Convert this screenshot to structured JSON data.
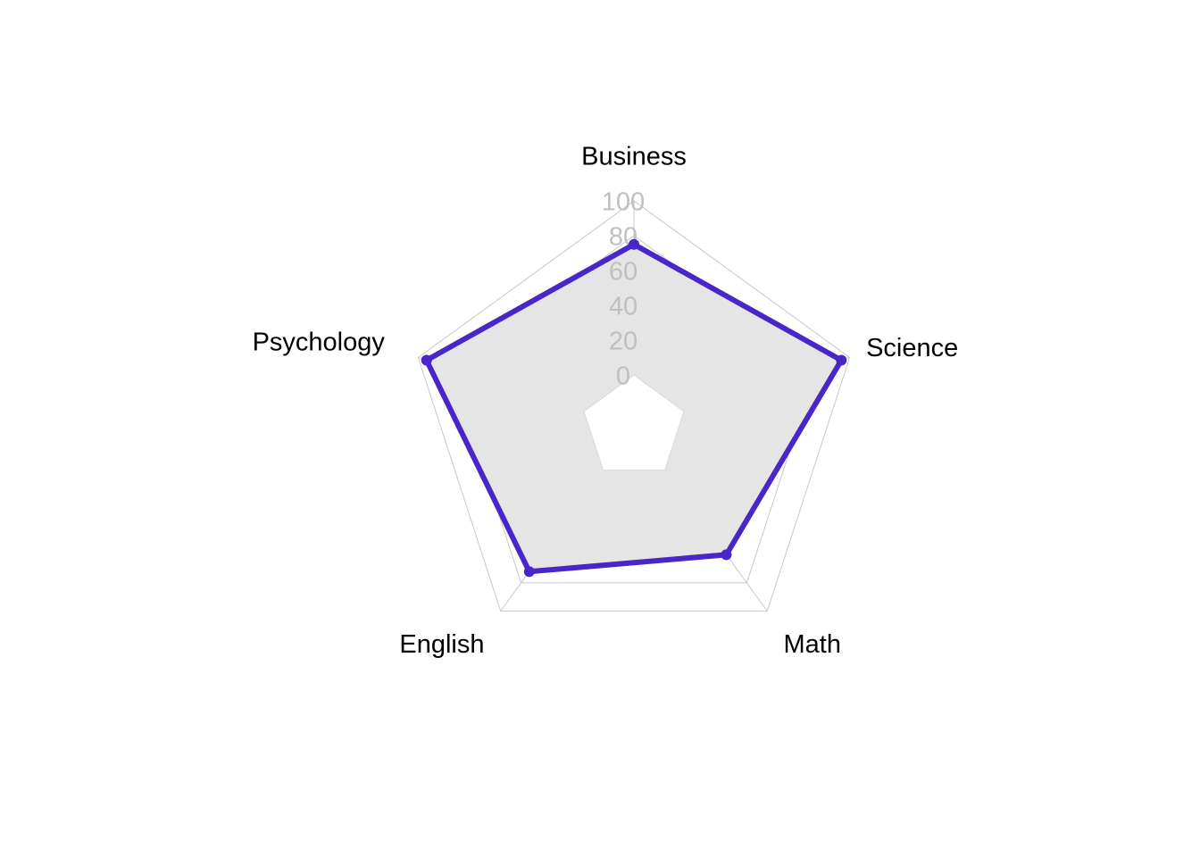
{
  "chart_data": {
    "type": "radar",
    "categories": [
      "Business",
      "Science",
      "Math",
      "English",
      "Psychology"
    ],
    "series": [
      {
        "values": [
          75,
          95,
          60,
          72,
          95
        ]
      }
    ],
    "rlim": [
      0,
      100
    ],
    "radial_ticks": [
      "0",
      "20",
      "40",
      "60",
      "80",
      "100"
    ],
    "grid": true,
    "legend": "none",
    "colors": {
      "series": "#4a26c8",
      "fill": "#e5e5e5",
      "grid": "#c8c8c8",
      "tick_text": "#c0c0c0",
      "label_text": "#000000",
      "background": "#ffffff"
    }
  }
}
